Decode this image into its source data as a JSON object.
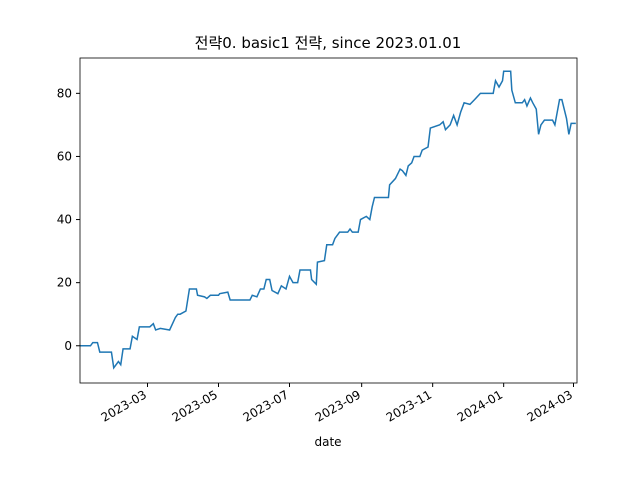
{
  "chart_data": {
    "type": "line",
    "title": "전략0. basic1 전략, since 2023.01.01",
    "xlabel": "date",
    "x": [
      "2023-01-02",
      "2023-01-11",
      "2023-01-13",
      "2023-01-17",
      "2023-01-19",
      "2023-01-29",
      "2023-01-31",
      "2023-02-04",
      "2023-02-06",
      "2023-02-08",
      "2023-02-14",
      "2023-02-16",
      "2023-02-20",
      "2023-02-22",
      "2023-03-03",
      "2023-03-06",
      "2023-03-08",
      "2023-03-12",
      "2023-03-20",
      "2023-03-25",
      "2023-03-27",
      "2023-03-29",
      "2023-04-03",
      "2023-04-06",
      "2023-04-12",
      "2023-04-13",
      "2023-04-19",
      "2023-04-21",
      "2023-04-24",
      "2023-05-01",
      "2023-05-02",
      "2023-05-09",
      "2023-05-11",
      "2023-05-28",
      "2023-05-30",
      "2023-06-03",
      "2023-06-06",
      "2023-06-09",
      "2023-06-11",
      "2023-06-14",
      "2023-06-16",
      "2023-06-21",
      "2023-06-24",
      "2023-06-28",
      "2023-07-01",
      "2023-07-04",
      "2023-07-08",
      "2023-07-10",
      "2023-07-19",
      "2023-07-20",
      "2023-07-24",
      "2023-07-25",
      "2023-07-31",
      "2023-08-02",
      "2023-08-07",
      "2023-08-09",
      "2023-08-13",
      "2023-08-20",
      "2023-08-22",
      "2023-08-24",
      "2023-08-29",
      "2023-08-31",
      "2023-09-05",
      "2023-09-08",
      "2023-09-10",
      "2023-09-12",
      "2023-09-24",
      "2023-09-25",
      "2023-09-30",
      "2023-10-04",
      "2023-10-06",
      "2023-10-09",
      "2023-10-11",
      "2023-10-14",
      "2023-10-16",
      "2023-10-21",
      "2023-10-23",
      "2023-10-28",
      "2023-10-30",
      "2023-11-07",
      "2023-11-10",
      "2023-11-12",
      "2023-11-16",
      "2023-11-19",
      "2023-11-22",
      "2023-11-25",
      "2023-11-28",
      "2023-12-03",
      "2023-12-07",
      "2023-12-12",
      "2023-12-23",
      "2023-12-25",
      "2023-12-28",
      "2023-12-31",
      "2024-01-01",
      "2024-01-07",
      "2024-01-08",
      "2024-01-11",
      "2024-01-17",
      "2024-01-19",
      "2024-01-21",
      "2024-01-24",
      "2024-01-26",
      "2024-01-29",
      "2024-01-31",
      "2024-02-02",
      "2024-02-05",
      "2024-02-12",
      "2024-02-14",
      "2024-02-16",
      "2024-02-18",
      "2024-02-20",
      "2024-02-24",
      "2024-02-26",
      "2024-02-28",
      "2024-03-03"
    ],
    "series": [
      {
        "color": "#1f77b4",
        "values": [
          0,
          0,
          1,
          1,
          -2,
          -2,
          -7,
          -5,
          -6,
          -1,
          -1,
          3,
          2,
          6,
          6,
          7,
          5,
          5.5,
          5,
          9,
          10,
          10,
          11,
          18,
          18,
          16,
          15.5,
          15,
          16,
          16,
          16.5,
          17,
          14.5,
          14.5,
          16,
          15.5,
          18,
          18,
          21,
          21,
          17.5,
          16.5,
          19,
          18,
          22,
          20,
          20,
          24,
          24,
          21,
          19.5,
          26.5,
          27,
          32,
          32,
          34,
          36,
          36,
          37,
          36,
          36,
          40,
          41,
          40,
          44,
          47,
          47,
          51,
          53,
          56,
          55.5,
          54,
          57,
          58,
          60,
          60,
          62,
          63,
          69,
          70,
          71,
          68.5,
          70,
          73,
          70,
          74,
          77,
          76.5,
          78,
          80,
          80,
          84,
          82,
          84,
          87,
          87,
          81,
          77,
          77,
          78,
          76,
          78.5,
          77,
          75,
          67,
          70,
          71.5,
          71.5,
          70,
          74,
          78,
          78,
          72,
          67,
          70.5,
          70.5
        ]
      }
    ],
    "xlim": [
      "2023-01-02",
      "2024-03-04"
    ],
    "xticks": [
      {
        "value": "2023-03-01",
        "label": "2023-03"
      },
      {
        "value": "2023-05-01",
        "label": "2023-05"
      },
      {
        "value": "2023-07-01",
        "label": "2023-07"
      },
      {
        "value": "2023-09-01",
        "label": "2023-09"
      },
      {
        "value": "2023-11-01",
        "label": "2023-11"
      },
      {
        "value": "2024-01-01",
        "label": "2024-01"
      },
      {
        "value": "2024-03-01",
        "label": "2024-03"
      }
    ],
    "ylim": [
      -11.8,
      91.2
    ],
    "yticks": [
      0,
      20,
      40,
      60,
      80
    ],
    "grid": false
  }
}
